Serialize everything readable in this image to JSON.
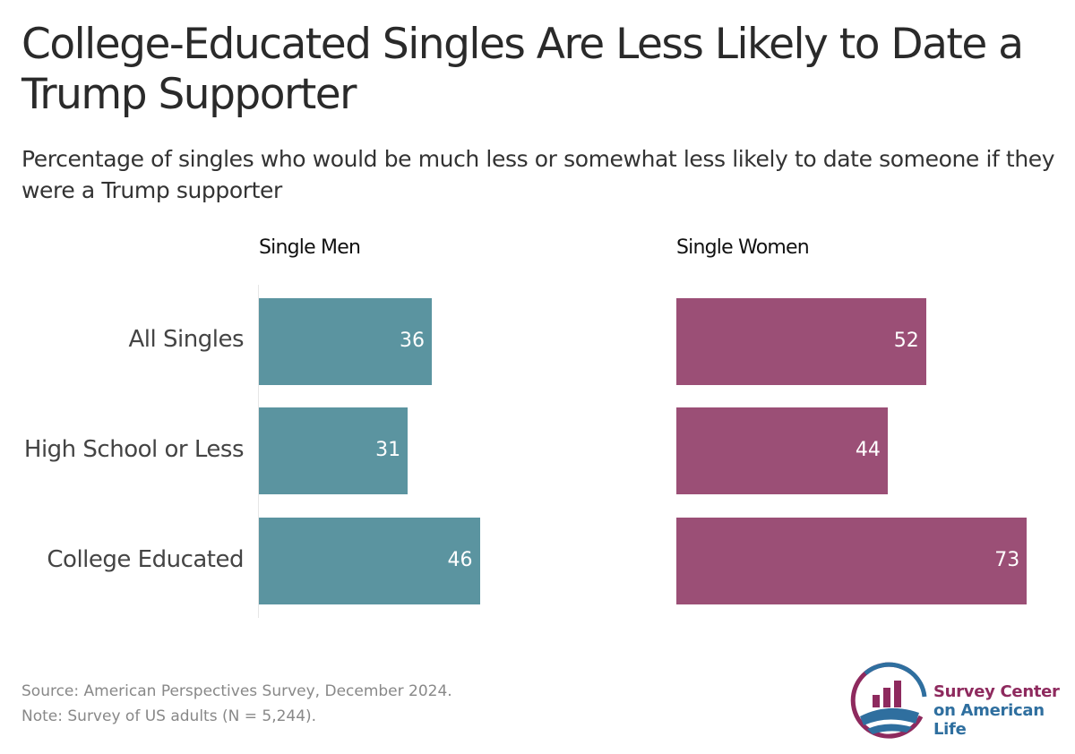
{
  "title": "College-Educated Singles Are Less Likely to Date a Trump Supporter",
  "subtitle": "Percentage of singles who would be much less or somewhat less likely to date someone if they were a Trump supporter",
  "source": "Source: American Perspectives Survey, December 2024.",
  "note": "Note: Survey of US adults (N = 5,244).",
  "logo": {
    "line1": "Survey Center",
    "line2": "on American Life",
    "color1": "#8e2a5e",
    "color2": "#2f6f9f"
  },
  "chart_data": {
    "type": "bar",
    "orientation": "horizontal",
    "categories": [
      "All Singles",
      "High School or Less",
      "College Educated"
    ],
    "panels": [
      {
        "name": "Single Men",
        "color": "#5b94a0",
        "values": [
          36,
          31,
          46
        ]
      },
      {
        "name": "Single Women",
        "color": "#9b4f76",
        "values": [
          52,
          44,
          73
        ]
      }
    ],
    "xlim": [
      0,
      75
    ]
  }
}
